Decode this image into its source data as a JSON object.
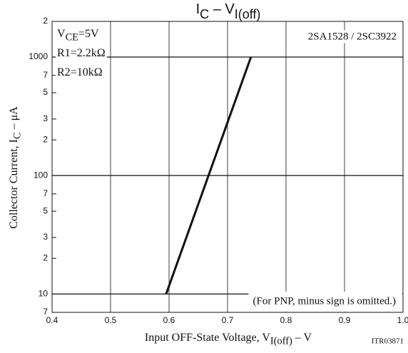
{
  "chart_data": {
    "type": "line",
    "title": [
      {
        "text": "I"
      },
      {
        "text": "C",
        "sub": true
      },
      {
        "text": "  –  V"
      },
      {
        "text": "I(off)",
        "sub": true
      }
    ],
    "x_label": [
      {
        "text": "Input OFF-State Voltage, V"
      },
      {
        "text": "I(off)",
        "sub": true
      },
      {
        "text": "  –  V"
      }
    ],
    "y_label": [
      {
        "text": "Collector Current, I"
      },
      {
        "text": "C",
        "sub": true
      },
      {
        "text": "  –  μA"
      }
    ],
    "annotations": {
      "conditions": [
        [
          {
            "text": "V"
          },
          {
            "text": "CE",
            "sub": true
          },
          {
            "text": "=5V"
          }
        ],
        [
          {
            "text": "R1=2.2kΩ"
          }
        ],
        [
          {
            "text": "R2=10kΩ"
          }
        ]
      ],
      "part_numbers": "2SA1528 / 2SC3922",
      "note": "(For PNP, minus sign is omitted.)",
      "figure_id": "ITR03871"
    },
    "ylog": true,
    "grid": true,
    "xlim": [
      0.4,
      1.0
    ],
    "ylim": [
      7,
      2000
    ],
    "xticks": [
      0.4,
      0.5,
      0.6,
      0.7,
      0.8,
      0.9,
      {
        "value": 1,
        "label": "1.0"
      }
    ],
    "yticks": [
      7,
      10,
      {
        "value": 20,
        "label": "2"
      },
      {
        "value": 30,
        "label": "3"
      },
      {
        "value": 50,
        "label": "5"
      },
      {
        "value": 70,
        "label": "7"
      },
      100,
      {
        "value": 200,
        "label": "2"
      },
      {
        "value": 300,
        "label": "3"
      },
      {
        "value": 500,
        "label": "5"
      },
      {
        "value": 700,
        "label": "7"
      },
      1000,
      {
        "value": 2000,
        "label": "2"
      }
    ],
    "series": [
      {
        "name": "IC",
        "color": "#111111",
        "x": [
          0.595,
          0.74
        ],
        "values": [
          10,
          1000
        ]
      }
    ]
  }
}
